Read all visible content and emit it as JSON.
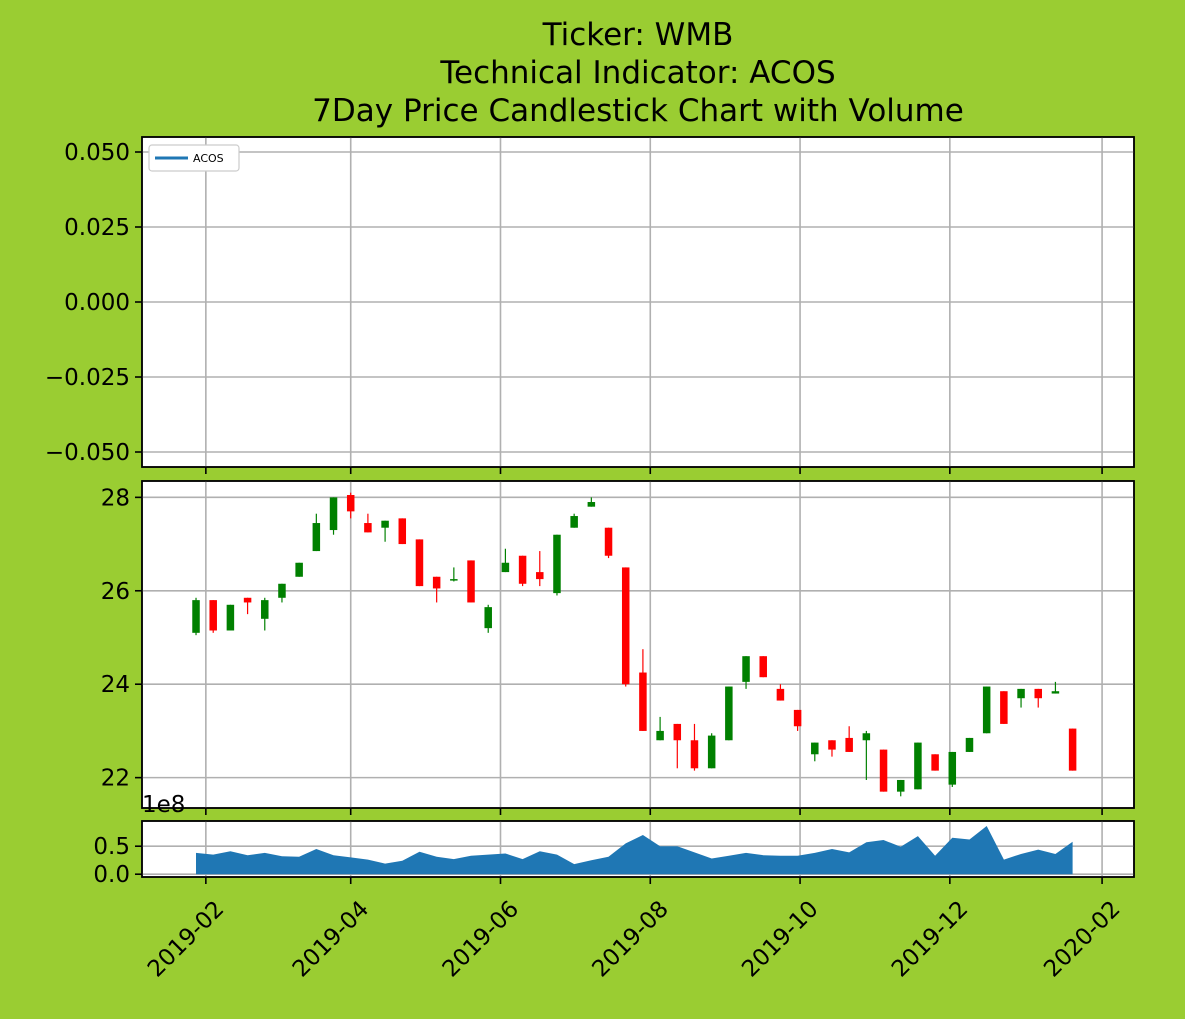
{
  "colors": {
    "background": "#9ACD32",
    "up": "#008000",
    "down": "#FF0000",
    "indicator": "#1f77b4",
    "volume": "#1f77b4",
    "grid": "#b0b0b0"
  },
  "chart_data": [
    {
      "type": "line",
      "title_lines": [
        "Ticker: WMB",
        "Technical Indicator: ACOS",
        "7Day Price Candlestick Chart with Volume"
      ],
      "legend": {
        "placement": "top-left",
        "entries": [
          "ACOS"
        ]
      },
      "ylim": [
        -0.055,
        0.055
      ],
      "yticks": [
        0.05,
        0.025,
        0.0,
        -0.025,
        -0.05
      ],
      "ytick_labels": [
        "0.050",
        "0.025",
        "0.000",
        "−0.025",
        "−0.050"
      ],
      "series": [
        {
          "name": "ACOS",
          "values": []
        }
      ],
      "grid": true
    },
    {
      "type": "candlestick",
      "ylim": [
        21.35,
        28.35
      ],
      "yticks": [
        22,
        24,
        26,
        28
      ],
      "ytick_labels": [
        "22",
        "24",
        "26",
        "28"
      ],
      "grid": true,
      "candles": [
        {
          "x": "2019-01-28",
          "o": 25.1,
          "h": 25.85,
          "l": 25.05,
          "c": 25.8
        },
        {
          "x": "2019-02-04",
          "o": 25.8,
          "h": 25.8,
          "l": 25.1,
          "c": 25.15
        },
        {
          "x": "2019-02-11",
          "o": 25.15,
          "h": 25.7,
          "l": 25.15,
          "c": 25.7
        },
        {
          "x": "2019-02-18",
          "o": 25.85,
          "h": 25.85,
          "l": 25.5,
          "c": 25.75
        },
        {
          "x": "2019-02-25",
          "o": 25.4,
          "h": 25.85,
          "l": 25.15,
          "c": 25.8
        },
        {
          "x": "2019-03-04",
          "o": 25.85,
          "h": 26.15,
          "l": 25.75,
          "c": 26.15
        },
        {
          "x": "2019-03-11",
          "o": 26.3,
          "h": 26.6,
          "l": 26.3,
          "c": 26.6
        },
        {
          "x": "2019-03-18",
          "o": 26.85,
          "h": 27.65,
          "l": 26.85,
          "c": 27.45
        },
        {
          "x": "2019-03-25",
          "o": 27.3,
          "h": 28.0,
          "l": 27.2,
          "c": 28.0
        },
        {
          "x": "2019-04-01",
          "o": 28.05,
          "h": 28.1,
          "l": 27.55,
          "c": 27.7
        },
        {
          "x": "2019-04-08",
          "o": 27.45,
          "h": 27.65,
          "l": 27.25,
          "c": 27.25
        },
        {
          "x": "2019-04-15",
          "o": 27.35,
          "h": 27.5,
          "l": 27.05,
          "c": 27.5
        },
        {
          "x": "2019-04-22",
          "o": 27.55,
          "h": 27.55,
          "l": 27.0,
          "c": 27.0
        },
        {
          "x": "2019-04-29",
          "o": 27.1,
          "h": 27.1,
          "l": 26.1,
          "c": 26.1
        },
        {
          "x": "2019-05-06",
          "o": 26.3,
          "h": 26.3,
          "l": 25.75,
          "c": 26.05
        },
        {
          "x": "2019-05-13",
          "o": 26.25,
          "h": 26.5,
          "l": 26.2,
          "c": 26.25
        },
        {
          "x": "2019-05-20",
          "o": 26.65,
          "h": 26.65,
          "l": 25.75,
          "c": 25.75
        },
        {
          "x": "2019-05-27",
          "o": 25.2,
          "h": 25.7,
          "l": 25.1,
          "c": 25.65
        },
        {
          "x": "2019-06-03",
          "o": 26.4,
          "h": 26.9,
          "l": 26.4,
          "c": 26.6
        },
        {
          "x": "2019-06-10",
          "o": 26.75,
          "h": 26.75,
          "l": 26.1,
          "c": 26.15
        },
        {
          "x": "2019-06-17",
          "o": 26.4,
          "h": 26.85,
          "l": 26.1,
          "c": 26.25
        },
        {
          "x": "2019-06-24",
          "o": 25.95,
          "h": 27.2,
          "l": 25.9,
          "c": 27.2
        },
        {
          "x": "2019-07-01",
          "o": 27.35,
          "h": 27.65,
          "l": 27.35,
          "c": 27.6
        },
        {
          "x": "2019-07-08",
          "o": 27.8,
          "h": 28.0,
          "l": 27.8,
          "c": 27.9
        },
        {
          "x": "2019-07-15",
          "o": 27.35,
          "h": 27.35,
          "l": 26.7,
          "c": 26.75
        },
        {
          "x": "2019-07-22",
          "o": 26.5,
          "h": 26.5,
          "l": 23.95,
          "c": 24.0
        },
        {
          "x": "2019-07-29",
          "o": 24.25,
          "h": 24.75,
          "l": 23.0,
          "c": 23.0
        },
        {
          "x": "2019-08-05",
          "o": 22.8,
          "h": 23.3,
          "l": 22.8,
          "c": 23.0
        },
        {
          "x": "2019-08-12",
          "o": 23.15,
          "h": 23.15,
          "l": 22.2,
          "c": 22.8
        },
        {
          "x": "2019-08-19",
          "o": 22.8,
          "h": 23.15,
          "l": 22.15,
          "c": 22.2
        },
        {
          "x": "2019-08-26",
          "o": 22.2,
          "h": 22.95,
          "l": 22.2,
          "c": 22.9
        },
        {
          "x": "2019-09-02",
          "o": 22.8,
          "h": 23.95,
          "l": 22.8,
          "c": 23.95
        },
        {
          "x": "2019-09-09",
          "o": 24.05,
          "h": 24.6,
          "l": 23.9,
          "c": 24.6
        },
        {
          "x": "2019-09-16",
          "o": 24.6,
          "h": 24.6,
          "l": 24.15,
          "c": 24.15
        },
        {
          "x": "2019-09-23",
          "o": 23.9,
          "h": 24.0,
          "l": 23.65,
          "c": 23.65
        },
        {
          "x": "2019-09-30",
          "o": 23.45,
          "h": 23.45,
          "l": 23.0,
          "c": 23.1
        },
        {
          "x": "2019-10-07",
          "o": 22.5,
          "h": 22.75,
          "l": 22.35,
          "c": 22.75
        },
        {
          "x": "2019-10-14",
          "o": 22.8,
          "h": 22.8,
          "l": 22.45,
          "c": 22.6
        },
        {
          "x": "2019-10-21",
          "o": 22.85,
          "h": 23.1,
          "l": 22.55,
          "c": 22.55
        },
        {
          "x": "2019-10-28",
          "o": 22.8,
          "h": 23.0,
          "l": 21.95,
          "c": 22.95
        },
        {
          "x": "2019-11-04",
          "o": 22.6,
          "h": 22.6,
          "l": 21.7,
          "c": 21.7
        },
        {
          "x": "2019-11-11",
          "o": 21.7,
          "h": 21.95,
          "l": 21.6,
          "c": 21.95
        },
        {
          "x": "2019-11-18",
          "o": 21.75,
          "h": 22.75,
          "l": 21.75,
          "c": 22.75
        },
        {
          "x": "2019-11-25",
          "o": 22.5,
          "h": 22.5,
          "l": 22.15,
          "c": 22.15
        },
        {
          "x": "2019-12-02",
          "o": 21.85,
          "h": 22.55,
          "l": 21.8,
          "c": 22.55
        },
        {
          "x": "2019-12-09",
          "o": 22.55,
          "h": 22.85,
          "l": 22.55,
          "c": 22.85
        },
        {
          "x": "2019-12-16",
          "o": 22.95,
          "h": 23.95,
          "l": 22.95,
          "c": 23.95
        },
        {
          "x": "2019-12-23",
          "o": 23.85,
          "h": 23.85,
          "l": 23.15,
          "c": 23.15
        },
        {
          "x": "2019-12-30",
          "o": 23.7,
          "h": 23.9,
          "l": 23.5,
          "c": 23.9
        },
        {
          "x": "2020-01-06",
          "o": 23.9,
          "h": 23.9,
          "l": 23.5,
          "c": 23.7
        },
        {
          "x": "2020-01-13",
          "o": 23.8,
          "h": 24.05,
          "l": 23.8,
          "c": 23.85
        },
        {
          "x": "2020-01-20",
          "o": 23.05,
          "h": 23.05,
          "l": 22.15,
          "c": 22.15
        }
      ]
    },
    {
      "type": "area",
      "offset_label": "1e8",
      "ylim": [
        -0.05,
        0.95
      ],
      "yticks": [
        0.0,
        0.5
      ],
      "ytick_labels": [
        "0.0",
        "0.5"
      ],
      "xticks": [
        "2019-02-01",
        "2019-04-01",
        "2019-06-01",
        "2019-08-01",
        "2019-10-01",
        "2019-12-01",
        "2020-02-01"
      ],
      "xtick_labels": [
        "2019-02",
        "2019-04",
        "2019-06",
        "2019-08",
        "2019-10",
        "2019-12",
        "2020-02"
      ],
      "x_range": [
        "2019-01-06",
        "2020-02-14"
      ],
      "grid": true,
      "series": [
        {
          "x": [
            "2019-01-28",
            "2019-02-04",
            "2019-02-11",
            "2019-02-18",
            "2019-02-25",
            "2019-03-04",
            "2019-03-11",
            "2019-03-18",
            "2019-03-25",
            "2019-04-01",
            "2019-04-08",
            "2019-04-15",
            "2019-04-22",
            "2019-04-29",
            "2019-05-06",
            "2019-05-13",
            "2019-05-20",
            "2019-05-27",
            "2019-06-03",
            "2019-06-10",
            "2019-06-17",
            "2019-06-24",
            "2019-07-01",
            "2019-07-08",
            "2019-07-15",
            "2019-07-22",
            "2019-07-29",
            "2019-08-05",
            "2019-08-12",
            "2019-08-19",
            "2019-08-26",
            "2019-09-02",
            "2019-09-09",
            "2019-09-16",
            "2019-09-23",
            "2019-09-30",
            "2019-10-07",
            "2019-10-14",
            "2019-10-21",
            "2019-10-28",
            "2019-11-04",
            "2019-11-11",
            "2019-11-18",
            "2019-11-25",
            "2019-12-02",
            "2019-12-09",
            "2019-12-16",
            "2019-12-23",
            "2019-12-30",
            "2020-01-06",
            "2020-01-13",
            "2020-01-20"
          ],
          "values": [
            0.38,
            0.35,
            0.41,
            0.34,
            0.38,
            0.32,
            0.31,
            0.45,
            0.34,
            0.3,
            0.26,
            0.19,
            0.24,
            0.4,
            0.31,
            0.27,
            0.33,
            0.35,
            0.37,
            0.27,
            0.41,
            0.35,
            0.18,
            0.25,
            0.31,
            0.55,
            0.7,
            0.5,
            0.5,
            0.39,
            0.28,
            0.33,
            0.38,
            0.34,
            0.33,
            0.33,
            0.38,
            0.45,
            0.39,
            0.57,
            0.61,
            0.49,
            0.68,
            0.33,
            0.65,
            0.62,
            0.86,
            0.26,
            0.36,
            0.44,
            0.36,
            0.58
          ]
        }
      ]
    }
  ]
}
